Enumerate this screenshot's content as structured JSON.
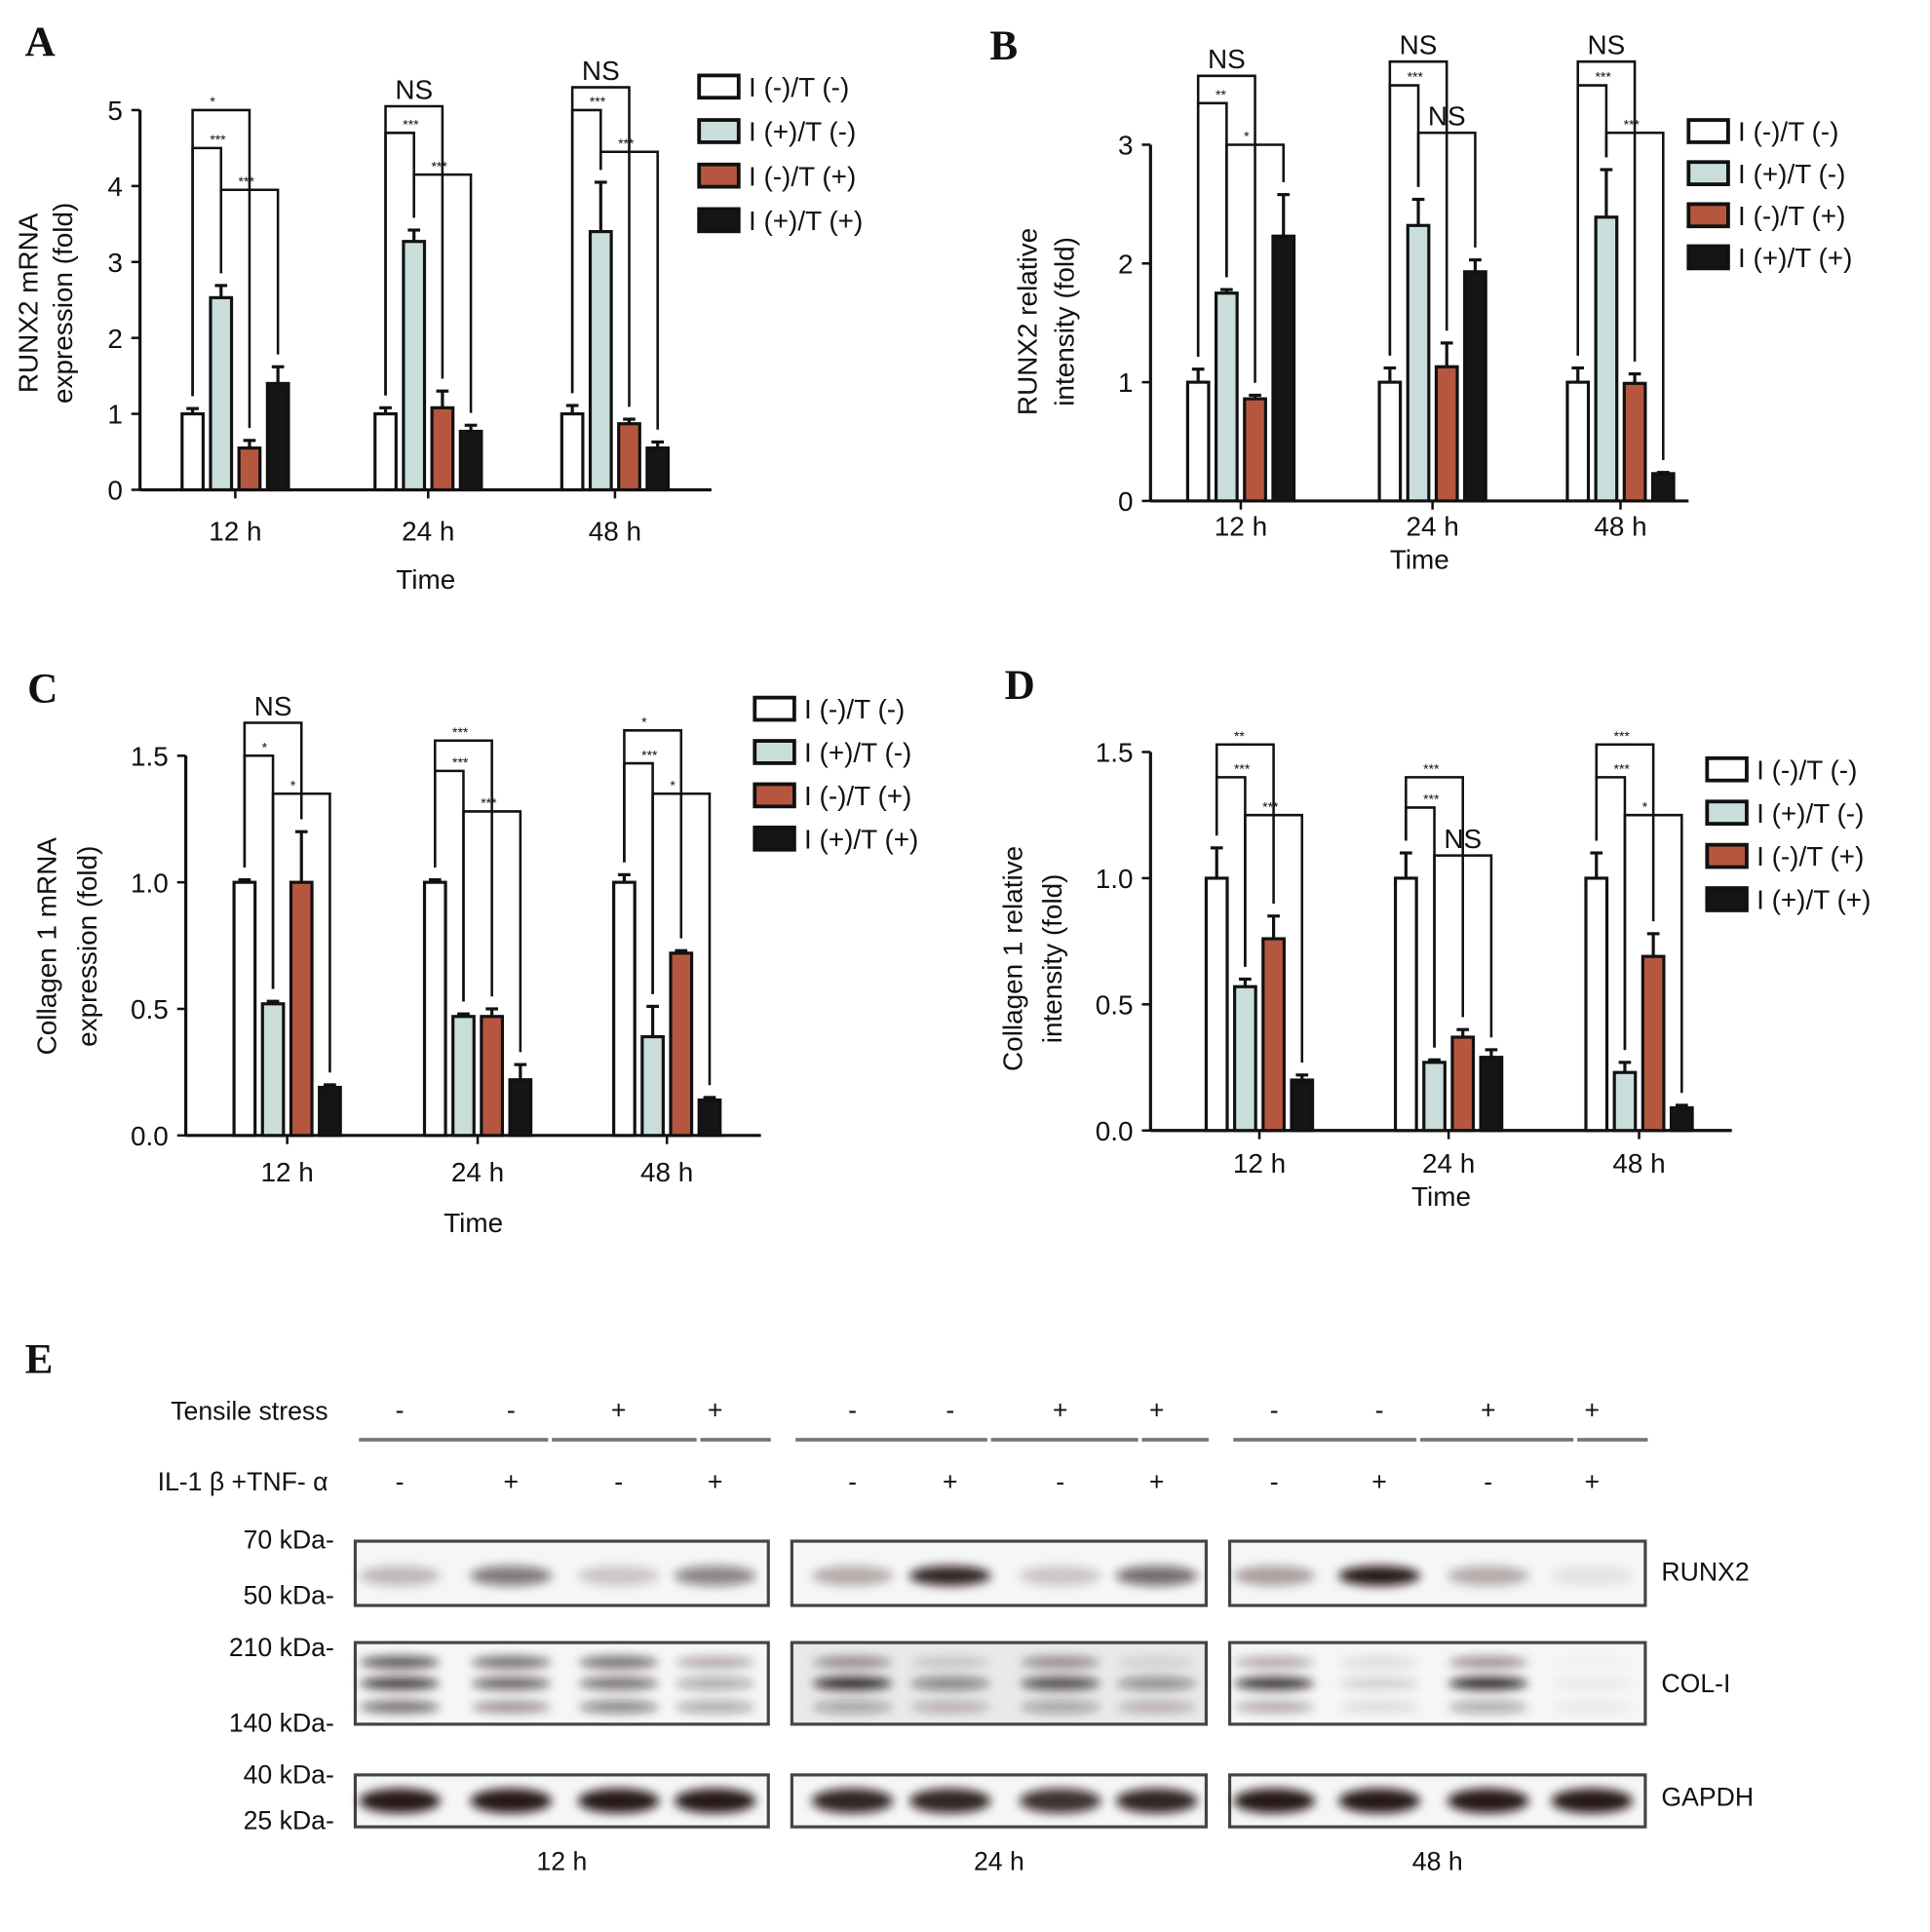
{
  "panel_letters": [
    "A",
    "B",
    "C",
    "D",
    "E"
  ],
  "legend": [
    "I (-)/T (-)",
    "I (+)/T (-)",
    "I (-)/T (+)",
    "I (+)/T (+)"
  ],
  "colors": {
    "s0": "#ffffff",
    "s1": "#c9dedb",
    "s2": "#b5573f",
    "s3": "#151515",
    "axis": "#111111"
  },
  "chart_data": [
    {
      "panel": "A",
      "type": "bar",
      "ylabel": [
        "RUNX2 mRNA",
        "expression (fold)"
      ],
      "xlabel": "Time",
      "categories": [
        "12 h",
        "24 h",
        "48 h"
      ],
      "ylim": [
        0,
        5
      ],
      "yticks": [
        0,
        1,
        2,
        3,
        4,
        5
      ],
      "ytick_labels": [
        "0",
        "1",
        "2",
        "3",
        "4",
        "5"
      ],
      "grid": false,
      "legend_position": "top-right",
      "series": [
        {
          "name": "I (-)/T (-)",
          "values": [
            1.0,
            1.0,
            1.0
          ],
          "errors": [
            0.07,
            0.08,
            0.11
          ]
        },
        {
          "name": "I (+)/T (-)",
          "values": [
            2.53,
            3.27,
            3.4
          ],
          "errors": [
            0.16,
            0.15,
            0.65
          ]
        },
        {
          "name": "I (-)/T (+)",
          "values": [
            0.55,
            1.08,
            0.87
          ],
          "errors": [
            0.1,
            0.22,
            0.06
          ]
        },
        {
          "name": "I (+)/T (+)",
          "values": [
            1.4,
            0.77,
            0.55
          ],
          "errors": [
            0.22,
            0.08,
            0.08
          ]
        }
      ],
      "significance": [
        {
          "group": 0,
          "pair": [
            0,
            2
          ],
          "label": "*",
          "y": 5.0
        },
        {
          "group": 0,
          "pair": [
            0,
            1
          ],
          "label": "***",
          "y": 4.5
        },
        {
          "group": 0,
          "pair": [
            1,
            3
          ],
          "label": "***",
          "y": 3.95
        },
        {
          "group": 1,
          "pair": [
            0,
            2
          ],
          "label": "NS",
          "y": 5.05
        },
        {
          "group": 1,
          "pair": [
            0,
            1
          ],
          "label": "***",
          "y": 4.7
        },
        {
          "group": 1,
          "pair": [
            1,
            3
          ],
          "label": "***",
          "y": 4.15
        },
        {
          "group": 2,
          "pair": [
            0,
            2
          ],
          "label": "NS",
          "y": 5.3
        },
        {
          "group": 2,
          "pair": [
            0,
            1
          ],
          "label": "***",
          "y": 5.0
        },
        {
          "group": 2,
          "pair": [
            1,
            3
          ],
          "label": "***",
          "y": 4.45
        }
      ]
    },
    {
      "panel": "B",
      "type": "bar",
      "ylabel": [
        "RUNX2 relative",
        "intensity (fold)"
      ],
      "xlabel": "Time",
      "categories": [
        "12 h",
        "24 h",
        "48 h"
      ],
      "ylim": [
        0,
        3
      ],
      "yticks": [
        0,
        1,
        2,
        3
      ],
      "ytick_labels": [
        "0",
        "1",
        "2",
        "3"
      ],
      "grid": false,
      "legend_position": "right",
      "series": [
        {
          "name": "I (-)/T (-)",
          "values": [
            1.0,
            1.0,
            1.0
          ],
          "errors": [
            0.11,
            0.12,
            0.12
          ]
        },
        {
          "name": "I (+)/T (-)",
          "values": [
            1.75,
            2.32,
            2.39
          ],
          "errors": [
            0.03,
            0.22,
            0.4
          ]
        },
        {
          "name": "I (-)/T (+)",
          "values": [
            0.86,
            1.13,
            0.99
          ],
          "errors": [
            0.03,
            0.2,
            0.08
          ]
        },
        {
          "name": "I (+)/T (+)",
          "values": [
            2.23,
            1.93,
            0.23
          ],
          "errors": [
            0.35,
            0.1,
            0.01
          ]
        }
      ],
      "significance": [
        {
          "group": 0,
          "pair": [
            0,
            2
          ],
          "label": "NS",
          "y": 3.58
        },
        {
          "group": 0,
          "pair": [
            0,
            1
          ],
          "label": "**",
          "y": 3.35
        },
        {
          "group": 0,
          "pair": [
            1,
            3
          ],
          "label": "*",
          "y": 3.0
        },
        {
          "group": 1,
          "pair": [
            0,
            2
          ],
          "label": "NS",
          "y": 3.7
        },
        {
          "group": 1,
          "pair": [
            0,
            1
          ],
          "label": "***",
          "y": 3.5
        },
        {
          "group": 1,
          "pair": [
            1,
            3
          ],
          "label": "NS",
          "y": 3.1
        },
        {
          "group": 2,
          "pair": [
            0,
            2
          ],
          "label": "NS",
          "y": 3.7
        },
        {
          "group": 2,
          "pair": [
            0,
            1
          ],
          "label": "***",
          "y": 3.5
        },
        {
          "group": 2,
          "pair": [
            1,
            3
          ],
          "label": "***",
          "y": 3.1
        }
      ]
    },
    {
      "panel": "C",
      "type": "bar",
      "ylabel": [
        "Collagen 1 mRNA",
        "expression (fold)"
      ],
      "xlabel": "Time",
      "categories": [
        "12 h",
        "24 h",
        "48 h"
      ],
      "ylim": [
        0,
        1.5
      ],
      "yticks": [
        0,
        0.5,
        1.0,
        1.5
      ],
      "ytick_labels": [
        "0.0",
        "0.5",
        "1.0",
        "1.5"
      ],
      "grid": false,
      "legend_position": "top-right",
      "series": [
        {
          "name": "I (-)/T (-)",
          "values": [
            1.0,
            1.0,
            1.0
          ],
          "errors": [
            0.01,
            0.01,
            0.03
          ]
        },
        {
          "name": "I (+)/T (-)",
          "values": [
            0.52,
            0.47,
            0.39
          ],
          "errors": [
            0.01,
            0.01,
            0.12
          ]
        },
        {
          "name": "I (-)/T (+)",
          "values": [
            1.0,
            0.47,
            0.72
          ],
          "errors": [
            0.2,
            0.03,
            0.01
          ]
        },
        {
          "name": "I (+)/T (+)",
          "values": [
            0.19,
            0.22,
            0.14
          ],
          "errors": [
            0.01,
            0.06,
            0.01
          ]
        }
      ],
      "significance": [
        {
          "group": 0,
          "pair": [
            0,
            2
          ],
          "label": "NS",
          "y": 1.63
        },
        {
          "group": 0,
          "pair": [
            0,
            1
          ],
          "label": "*",
          "y": 1.5
        },
        {
          "group": 0,
          "pair": [
            1,
            3
          ],
          "label": "*",
          "y": 1.35
        },
        {
          "group": 1,
          "pair": [
            0,
            2
          ],
          "label": "***",
          "y": 1.56
        },
        {
          "group": 1,
          "pair": [
            0,
            1
          ],
          "label": "***",
          "y": 1.44
        },
        {
          "group": 1,
          "pair": [
            1,
            3
          ],
          "label": "***",
          "y": 1.28
        },
        {
          "group": 2,
          "pair": [
            0,
            2
          ],
          "label": "*",
          "y": 1.6
        },
        {
          "group": 2,
          "pair": [
            0,
            1
          ],
          "label": "***",
          "y": 1.47
        },
        {
          "group": 2,
          "pair": [
            1,
            3
          ],
          "label": "*",
          "y": 1.35
        }
      ]
    },
    {
      "panel": "D",
      "type": "bar",
      "ylabel": [
        "Collagen 1 relative",
        "intensity (fold)"
      ],
      "xlabel": "Time",
      "categories": [
        "12 h",
        "24 h",
        "48 h"
      ],
      "ylim": [
        0,
        1.5
      ],
      "yticks": [
        0,
        0.5,
        1.0,
        1.5
      ],
      "ytick_labels": [
        "0.0",
        "0.5",
        "1.0",
        "1.5"
      ],
      "grid": false,
      "legend_position": "right",
      "series": [
        {
          "name": "I (-)/T (-)",
          "values": [
            1.0,
            1.0,
            1.0
          ],
          "errors": [
            0.12,
            0.1,
            0.1
          ]
        },
        {
          "name": "I (+)/T (-)",
          "values": [
            0.57,
            0.27,
            0.23
          ],
          "errors": [
            0.03,
            0.01,
            0.04
          ]
        },
        {
          "name": "I (-)/T (+)",
          "values": [
            0.76,
            0.37,
            0.69
          ],
          "errors": [
            0.09,
            0.03,
            0.09
          ]
        },
        {
          "name": "I (+)/T (+)",
          "values": [
            0.2,
            0.29,
            0.09
          ],
          "errors": [
            0.02,
            0.03,
            0.01
          ]
        }
      ],
      "significance": [
        {
          "group": 0,
          "pair": [
            0,
            2
          ],
          "label": "**",
          "y": 1.53
        },
        {
          "group": 0,
          "pair": [
            0,
            1
          ],
          "label": "***",
          "y": 1.4
        },
        {
          "group": 0,
          "pair": [
            1,
            3
          ],
          "label": "***",
          "y": 1.25
        },
        {
          "group": 1,
          "pair": [
            0,
            2
          ],
          "label": "***",
          "y": 1.4
        },
        {
          "group": 1,
          "pair": [
            0,
            1
          ],
          "label": "***",
          "y": 1.28
        },
        {
          "group": 1,
          "pair": [
            1,
            3
          ],
          "label": "NS",
          "y": 1.09
        },
        {
          "group": 2,
          "pair": [
            0,
            2
          ],
          "label": "***",
          "y": 1.53
        },
        {
          "group": 2,
          "pair": [
            0,
            1
          ],
          "label": "***",
          "y": 1.4
        },
        {
          "group": 2,
          "pair": [
            1,
            3
          ],
          "label": "*",
          "y": 1.25
        }
      ]
    }
  ],
  "blot": {
    "row_labels": {
      "tensile": "Tensile stress",
      "cytokine": "IL-1 β +TNF- α"
    },
    "tensile": [
      "-",
      "-",
      "+",
      "+"
    ],
    "cytokine": [
      "-",
      "+",
      "-",
      "+"
    ],
    "timepoints": [
      "12 h",
      "24 h",
      "48 h"
    ],
    "mw_markers": [
      "70 kDa-",
      "50 kDa-",
      "210 kDa-",
      "140 kDa-",
      "40 kDa-",
      "25 kDa-"
    ],
    "proteins": [
      "RUNX2",
      "COL-I",
      "GAPDH"
    ],
    "band_intensity": {
      "RUNX2": [
        [
          0.25,
          0.55,
          0.2,
          0.5
        ],
        [
          0.3,
          0.9,
          0.2,
          0.6
        ],
        [
          0.35,
          0.95,
          0.3,
          0.08
        ]
      ],
      "COL-I": [
        [
          [
            0.7,
            0.8,
            0.6
          ],
          [
            0.6,
            0.65,
            0.4
          ],
          [
            0.6,
            0.6,
            0.5
          ],
          [
            0.3,
            0.35,
            0.35
          ]
        ],
        [
          [
            0.4,
            0.9,
            0.35
          ],
          [
            0.15,
            0.5,
            0.25
          ],
          [
            0.4,
            0.75,
            0.35
          ],
          [
            0.1,
            0.45,
            0.25
          ]
        ],
        [
          [
            0.3,
            0.85,
            0.3
          ],
          [
            0.1,
            0.15,
            0.1
          ],
          [
            0.4,
            0.9,
            0.35
          ],
          [
            0.02,
            0.05,
            0.05
          ]
        ]
      ],
      "GAPDH": [
        [
          0.95,
          0.95,
          0.95,
          0.95
        ],
        [
          0.9,
          0.9,
          0.85,
          0.9
        ],
        [
          0.95,
          0.95,
          0.95,
          0.95
        ]
      ]
    }
  }
}
